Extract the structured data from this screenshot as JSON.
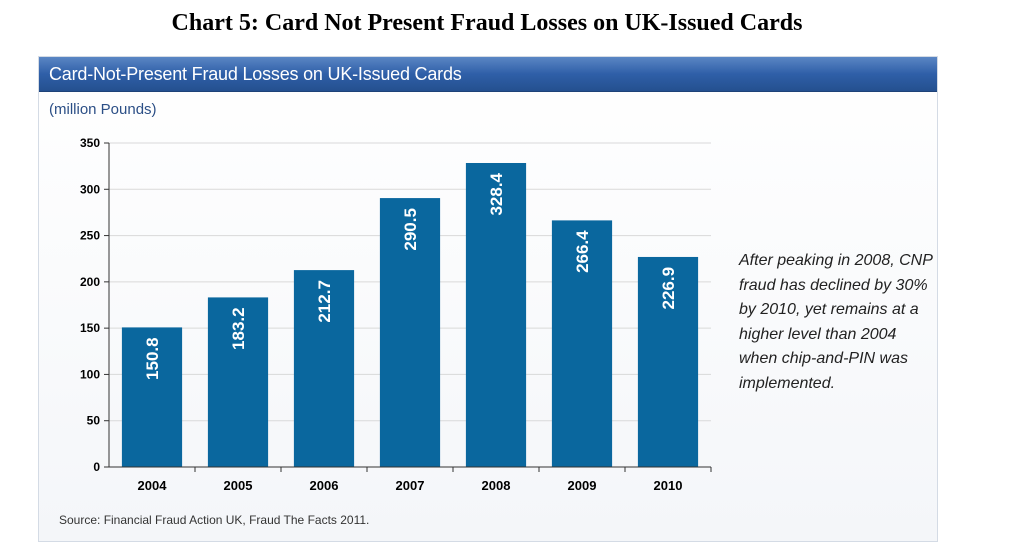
{
  "page_title": "Chart 5: Card Not Present Fraud Losses on UK-Issued Cards",
  "panel_title": "Card-Not-Present Fraud Losses on UK-Issued Cards",
  "unit_label": "(million Pounds)",
  "annotation": "After peaking in 2008, CNP fraud has declined by 30% by 2010, yet remains at  a higher level than 2004 when chip-and-PIN was implemented.",
  "source": "Source: Financial Fraud Action UK, Fraud The Facts 2011.",
  "colors": {
    "bar": "#0a679e",
    "header": "#2f5fa8",
    "gridline": "#d9d9d9"
  },
  "chart_data": {
    "type": "bar",
    "categories": [
      "2004",
      "2005",
      "2006",
      "2007",
      "2008",
      "2009",
      "2010"
    ],
    "values": [
      150.8,
      183.2,
      212.7,
      290.5,
      328.4,
      266.4,
      226.9
    ],
    "value_labels": [
      "150.8",
      "183.2",
      "212.7",
      "290.5",
      "328.4",
      "266.4",
      "226.9"
    ],
    "ylabel": "(million Pounds)",
    "ylim": [
      0,
      350
    ],
    "yticks": [
      0,
      50,
      100,
      150,
      200,
      250,
      300,
      350
    ],
    "grid": true,
    "legend": "none"
  }
}
